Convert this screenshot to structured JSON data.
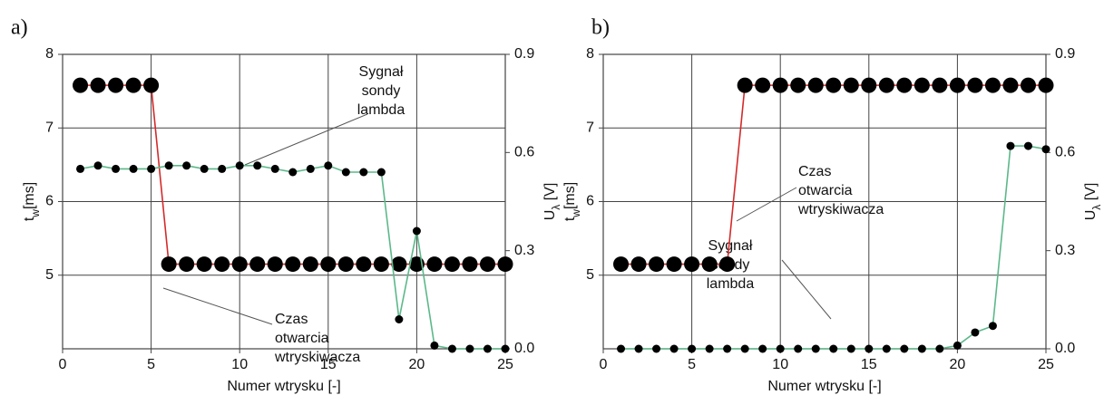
{
  "chart_data": [
    {
      "type": "line",
      "panel_label": "a)",
      "xlabel": "Numer wtrysku [-]",
      "ylabel": [
        "t",
        "w",
        "[ms]"
      ],
      "y2label": [
        "U",
        "λ",
        " [V]"
      ],
      "x": [
        1,
        2,
        3,
        4,
        5,
        6,
        7,
        8,
        9,
        10,
        11,
        12,
        13,
        14,
        15,
        16,
        17,
        18,
        19,
        20,
        21,
        22,
        23,
        24,
        25
      ],
      "xlim": [
        0,
        25
      ],
      "xticks": [
        0,
        5,
        10,
        15,
        20,
        25
      ],
      "ylim": [
        4,
        8
      ],
      "yticks": [
        5,
        6,
        7,
        8
      ],
      "y2lim": [
        0,
        0.9
      ],
      "y2ticks": [
        {
          "value": 0,
          "label": "0.0"
        },
        0.3,
        0.6,
        0.9
      ],
      "grid": true,
      "series": [
        {
          "color": "#000000",
          "line_color": "#d42a2a",
          "marker": "large",
          "values": [
            7.58,
            7.58,
            7.58,
            7.58,
            7.58,
            5.15,
            5.15,
            5.15,
            5.15,
            5.15,
            5.15,
            5.15,
            5.15,
            5.15,
            5.15,
            5.15,
            5.15,
            5.15,
            5.15,
            5.15,
            5.15,
            5.15,
            5.15,
            5.15,
            5.15
          ]
        },
        {
          "color": "#000000",
          "line_color": "#5cb88a",
          "marker": "small",
          "axis": "y2",
          "values": [
            0.55,
            0.56,
            0.55,
            0.55,
            0.55,
            0.56,
            0.56,
            0.55,
            0.55,
            0.56,
            0.56,
            0.55,
            0.54,
            0.55,
            0.56,
            0.54,
            0.54,
            0.54,
            0.09,
            0.36,
            0.01,
            0.0,
            0.0,
            0.0,
            0.0
          ]
        }
      ],
      "annotations": [
        {
          "text": [
            "Sygnał",
            "sondy",
            "lambda"
          ]
        },
        {
          "text": [
            "Czas",
            "otwarcia",
            "wtryskiwacza"
          ]
        }
      ]
    },
    {
      "type": "line",
      "panel_label": "b)",
      "xlabel": "Numer wtrysku [-]",
      "ylabel": [
        "t",
        "w",
        "[ms]"
      ],
      "y2label": [
        "U",
        "λ",
        " [V]"
      ],
      "x": [
        1,
        2,
        3,
        4,
        5,
        6,
        7,
        8,
        9,
        10,
        11,
        12,
        13,
        14,
        15,
        16,
        17,
        18,
        19,
        20,
        21,
        22,
        23,
        24,
        25
      ],
      "xlim": [
        0,
        25
      ],
      "xticks": [
        0,
        5,
        10,
        15,
        20,
        25
      ],
      "ylim": [
        4,
        8
      ],
      "yticks": [
        5,
        6,
        7,
        8
      ],
      "y2lim": [
        0,
        0.9
      ],
      "y2ticks": [
        {
          "value": 0,
          "label": "0.0"
        },
        0.3,
        0.6,
        0.9
      ],
      "grid": true,
      "series": [
        {
          "color": "#000000",
          "line_color": "#d42a2a",
          "marker": "large",
          "values": [
            5.15,
            5.15,
            5.15,
            5.15,
            5.15,
            5.15,
            5.15,
            7.58,
            7.58,
            7.58,
            7.58,
            7.58,
            7.58,
            7.58,
            7.58,
            7.58,
            7.58,
            7.58,
            7.58,
            7.58,
            7.58,
            7.58,
            7.58,
            7.58,
            7.58
          ]
        },
        {
          "color": "#000000",
          "line_color": "#5cb88a",
          "marker": "small",
          "axis": "y2",
          "values": [
            0.0,
            0.0,
            0.0,
            0.0,
            0.0,
            0.0,
            0.0,
            0.0,
            0.0,
            0.0,
            0.0,
            0.0,
            0.0,
            0.0,
            0.0,
            0.0,
            0.0,
            0.0,
            0.0,
            0.01,
            0.05,
            0.07,
            0.62,
            0.62,
            0.61
          ]
        }
      ],
      "annotations": [
        {
          "text": [
            "Czas",
            "otwarcia",
            "wtryskiwacza"
          ]
        },
        {
          "text": [
            "Sygnał",
            "sondy",
            "lambda"
          ]
        }
      ]
    }
  ]
}
